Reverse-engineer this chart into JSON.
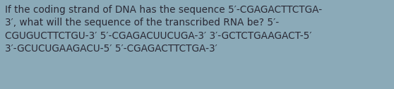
{
  "text": "If the coding strand of DNA has the sequence 5′-CGAGACTTCTGA-\n3′, what will the sequence of the transcribed RNA be? 5′-\nCGUGUCTTCTGU-3′ 5′-CGAGACUUCUGA-3′ 3′-GCTCTGAAGACT-5′\n3′-GCUCUGAAGACU-5′ 5′-CGAGACTTCTGA-3′",
  "background_color": "#8baab8",
  "text_color": "#2a2a35",
  "font_size": 9.8,
  "fig_width": 5.58,
  "fig_height": 1.26,
  "dpi": 100
}
